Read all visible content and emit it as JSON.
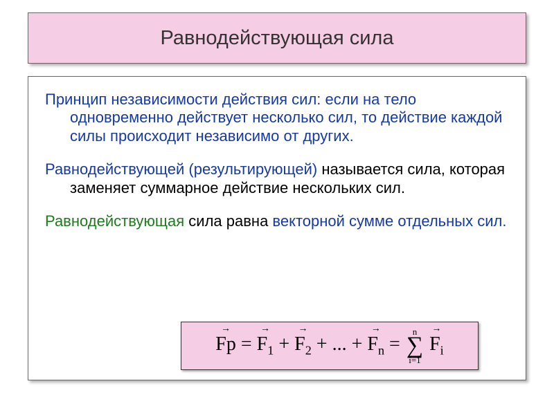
{
  "header": {
    "title": "Равнодействующая сила",
    "bg_color": "#f5cde4",
    "border_color": "#666666",
    "font_size": 29
  },
  "body": {
    "para1": {
      "lead": "Принцип независимости действия сил: ",
      "rest": "если на тело одновременно действует несколько сил, то действие каждой силы происходит независимо от других."
    },
    "para2": {
      "lead": "Равнодействующей (результирующей)  ",
      "rest": "называется сила, которая заменяет суммарное действие нескольких  сил."
    },
    "para3": {
      "lead": "Равнодействующая ",
      "mid": "сила равна ",
      "tail": "векторной сумме отдельных сил."
    },
    "colors": {
      "emphasis": "#163aa2",
      "normal": "#000000",
      "green": "#1e7a1e"
    },
    "font_size": 22
  },
  "formula": {
    "bg_color": "#f5cde4",
    "lhs": "Fр",
    "terms": [
      "F",
      "F",
      "F"
    ],
    "subs": [
      "1",
      "2",
      "n"
    ],
    "ellipsis": "...",
    "sigma_top": "n",
    "sigma_bot": "i=1",
    "sigma_term": "F",
    "sigma_sub": "i",
    "font_size": 28
  }
}
